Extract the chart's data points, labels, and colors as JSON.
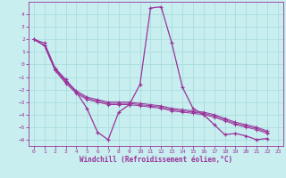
{
  "background_color": "#c8eef0",
  "grid_color": "#aadddd",
  "line_color": "#993399",
  "xlabel": "Windchill (Refroidissement éolien,°C)",
  "ylim": [
    -6.5,
    5.0
  ],
  "xlim": [
    -0.5,
    23.5
  ],
  "yticks": [
    -6,
    -5,
    -4,
    -3,
    -2,
    -1,
    0,
    1,
    2,
    3,
    4
  ],
  "xticks": [
    0,
    1,
    2,
    3,
    4,
    5,
    6,
    7,
    8,
    9,
    10,
    11,
    12,
    13,
    14,
    15,
    16,
    17,
    18,
    19,
    20,
    21,
    22,
    23
  ],
  "series": [
    [
      2.0,
      1.7,
      -0.3,
      -1.2,
      -2.2,
      -3.5,
      -5.4,
      -6.0,
      -3.8,
      -3.2,
      -1.6,
      4.5,
      4.6,
      1.7,
      -1.8,
      -3.5,
      -4.0,
      -4.8,
      -5.6,
      -5.5,
      -5.7,
      -6.0,
      -5.9
    ],
    [
      2.0,
      1.5,
      -0.5,
      -1.5,
      -2.3,
      -2.8,
      -3.0,
      -3.2,
      -3.2,
      -3.2,
      -3.3,
      -3.4,
      -3.5,
      -3.7,
      -3.8,
      -3.9,
      -4.0,
      -4.2,
      -4.5,
      -4.8,
      -5.0,
      -5.2,
      -5.5
    ],
    [
      2.0,
      1.5,
      -0.4,
      -1.4,
      -2.2,
      -2.7,
      -2.9,
      -3.1,
      -3.1,
      -3.1,
      -3.2,
      -3.3,
      -3.4,
      -3.6,
      -3.7,
      -3.8,
      -3.9,
      -4.1,
      -4.4,
      -4.7,
      -4.9,
      -5.1,
      -5.4
    ],
    [
      2.0,
      1.5,
      -0.4,
      -1.3,
      -2.1,
      -2.6,
      -2.8,
      -3.0,
      -3.0,
      -3.0,
      -3.1,
      -3.2,
      -3.3,
      -3.5,
      -3.6,
      -3.7,
      -3.8,
      -4.0,
      -4.3,
      -4.6,
      -4.8,
      -5.0,
      -5.3
    ]
  ],
  "x_values": [
    0,
    1,
    2,
    3,
    4,
    5,
    6,
    7,
    8,
    9,
    10,
    11,
    12,
    13,
    14,
    15,
    16,
    17,
    18,
    19,
    20,
    21,
    22
  ]
}
